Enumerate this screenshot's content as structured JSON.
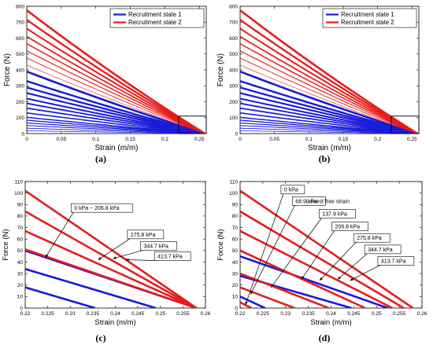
{
  "chart_data": [
    {
      "panel": "a",
      "caption": "(a)",
      "type": "line",
      "xlabel": "Strain (m/m)",
      "ylabel": "Force (N)",
      "xlim": [
        0,
        0.26
      ],
      "ylim": [
        0,
        800
      ],
      "xticks": [
        "0",
        "0.05",
        "0.1",
        "0.15",
        "0.2",
        "0.25"
      ],
      "yticks": [
        "0",
        "100",
        "200",
        "300",
        "400",
        "500",
        "600",
        "700",
        "800"
      ],
      "legend": {
        "position": "top-right",
        "entries": [
          "Recruitment state 1",
          "Recruitment state 2"
        ]
      },
      "zoom_box": {
        "x": [
          0.22,
          0.26
        ],
        "y": [
          0,
          110
        ]
      },
      "x_end": 0.258,
      "curvature": 0.1,
      "series": [
        {
          "legend": "Recruitment state 1",
          "color": "#1a1ad9",
          "intercepts": [
            0,
            18,
            34,
            51,
            67,
            84,
            102,
            130,
            160,
            190,
            220,
            255,
            290,
            330,
            390
          ]
        },
        {
          "legend": "Recruitment state 2",
          "color": "#e51c1c",
          "intercepts": [
            430,
            475,
            520,
            565,
            610,
            660,
            715,
            775
          ]
        }
      ]
    },
    {
      "panel": "b",
      "caption": "(b)",
      "type": "line",
      "xlabel": "Strain (m/m)",
      "ylabel": "Force (N)",
      "xlim": [
        0,
        0.26
      ],
      "ylim": [
        0,
        800
      ],
      "xticks": [
        "0",
        "0.05",
        "0.1",
        "0.15",
        "0.2",
        "0.25"
      ],
      "yticks": [
        "0",
        "100",
        "200",
        "300",
        "400",
        "500",
        "600",
        "700",
        "800"
      ],
      "legend": {
        "position": "top-right",
        "entries": [
          "Recruitment state 1",
          "Recruitment state 2"
        ]
      },
      "zoom_box": {
        "x": [
          0.22,
          0.26
        ],
        "y": [
          0,
          110
        ]
      },
      "x_end": 0.258,
      "curvature": 0.1,
      "series": [
        {
          "legend": "Recruitment state 1",
          "color": "#1a1ad9",
          "intercepts": [
            0,
            18,
            34,
            51,
            67,
            84,
            102,
            130,
            160,
            190,
            220,
            255,
            290,
            330,
            390
          ]
        },
        {
          "legend": "Recruitment state 2",
          "color": "#e51c1c",
          "intercepts": [
            430,
            475,
            520,
            565,
            610,
            660,
            715,
            775
          ]
        }
      ]
    },
    {
      "panel": "c",
      "caption": "(c)",
      "type": "line",
      "xlabel": "Strain (m/m)",
      "ylabel": "Force (N)",
      "xlim": [
        0.22,
        0.26
      ],
      "ylim": [
        0,
        110
      ],
      "xticks": [
        "0.22",
        "0.225",
        "0.23",
        "0.235",
        "0.24",
        "0.245",
        "0.25",
        "0.255",
        "0.26"
      ],
      "yticks": [
        "0",
        "10",
        "20",
        "30",
        "40",
        "50",
        "60",
        "70",
        "80",
        "90",
        "100",
        "110"
      ],
      "lines": [
        {
          "color": "#1a1ad9",
          "from": [
            0.22,
            18
          ],
          "to": [
            0.2355,
            0
          ]
        },
        {
          "color": "#1a1ad9",
          "from": [
            0.22,
            34
          ],
          "to": [
            0.249,
            0
          ]
        },
        {
          "color": "#1a1ad9",
          "from": [
            0.22,
            50
          ],
          "to": [
            0.258,
            0
          ]
        },
        {
          "color": "#e51c1c",
          "from": [
            0.22,
            51
          ],
          "to": [
            0.258,
            0
          ]
        },
        {
          "color": "#e51c1c",
          "from": [
            0.22,
            67
          ],
          "to": [
            0.258,
            0
          ]
        },
        {
          "color": "#e51c1c",
          "from": [
            0.22,
            84
          ],
          "to": [
            0.258,
            0
          ]
        },
        {
          "color": "#e51c1c",
          "from": [
            0.22,
            102
          ],
          "to": [
            0.258,
            0
          ]
        }
      ],
      "annotations": [
        {
          "text": "0 kPa ~ 206.8 kPa",
          "box": [
            0.2307,
            87
          ],
          "arrow_to": [
            0.2245,
            44
          ]
        },
        {
          "text": "275.8 kPa",
          "box": [
            0.2432,
            64
          ],
          "arrow_to": [
            0.2362,
            42
          ]
        },
        {
          "text": "344.7 kPa",
          "box": [
            0.2461,
            54
          ],
          "arrow_to": [
            0.2395,
            43
          ]
        },
        {
          "text": "413.7 kPa",
          "box": [
            0.2492,
            45
          ],
          "arrow_to": [
            0.2423,
            42
          ]
        }
      ]
    },
    {
      "panel": "d",
      "caption": "(d)",
      "type": "line",
      "xlabel": "Strain (m/m)",
      "ylabel": "Force (N)",
      "xlim": [
        0.22,
        0.26
      ],
      "ylim": [
        0,
        110
      ],
      "xticks": [
        "0.22",
        "0.225",
        "0.23",
        "0.235",
        "0.24",
        "0.245",
        "0.25",
        "0.255",
        "0.26"
      ],
      "yticks": [
        "0",
        "10",
        "20",
        "30",
        "40",
        "50",
        "60",
        "70",
        "80",
        "90",
        "100",
        "110"
      ],
      "lines": [
        {
          "color": "#1a1ad9",
          "from": [
            0.22,
            10
          ],
          "to": [
            0.2255,
            0
          ]
        },
        {
          "color": "#1a1ad9",
          "from": [
            0.22,
            28
          ],
          "to": [
            0.2445,
            0
          ]
        },
        {
          "color": "#1a1ad9",
          "from": [
            0.22,
            45
          ],
          "to": [
            0.2525,
            0
          ]
        },
        {
          "color": "#e51c1c",
          "from": [
            0.22,
            5
          ],
          "to": [
            0.2225,
            0
          ]
        },
        {
          "color": "#e51c1c",
          "from": [
            0.22,
            18
          ],
          "to": [
            0.232,
            0
          ]
        },
        {
          "color": "#e51c1c",
          "from": [
            0.22,
            30
          ],
          "to": [
            0.2395,
            0
          ]
        },
        {
          "color": "#e51c1c",
          "from": [
            0.22,
            50
          ],
          "to": [
            0.2475,
            0
          ]
        },
        {
          "color": "#e51c1c",
          "from": [
            0.22,
            67
          ],
          "to": [
            0.2535,
            0
          ]
        },
        {
          "color": "#e51c1c",
          "from": [
            0.22,
            84
          ],
          "to": [
            0.256,
            0
          ]
        },
        {
          "color": "#e51c1c",
          "from": [
            0.22,
            102
          ],
          "to": [
            0.258,
            0
          ]
        }
      ],
      "annotations": [
        {
          "text": "0 kPa",
          "box": [
            0.2295,
            103
          ],
          "arrow_to": [
            0.2212,
            3
          ]
        },
        {
          "text": "68.9 kPa",
          "box": [
            0.232,
            93
          ],
          "arrow_to": [
            0.2223,
            12
          ]
        },
        {
          "text": "137.9 kPa",
          "box": [
            0.2379,
            82
          ],
          "arrow_to": [
            0.2268,
            18
          ]
        },
        {
          "text": "206.8 kPa",
          "box": [
            0.2407,
            71
          ],
          "arrow_to": [
            0.2335,
            25
          ]
        },
        {
          "text": "275.8 kPa",
          "box": [
            0.2455,
            61
          ],
          "arrow_to": [
            0.2375,
            24
          ]
        },
        {
          "text": "344.7 kPa",
          "box": [
            0.2479,
            51
          ],
          "arrow_to": [
            0.2415,
            25
          ]
        },
        {
          "text": "413.7 kPa",
          "box": [
            0.2508,
            41
          ],
          "arrow_to": [
            0.2442,
            24
          ]
        }
      ],
      "note": {
        "text": "Lowest free strain",
        "at": [
          0.2345,
          93
        ],
        "color": "#e51c1c"
      }
    }
  ]
}
